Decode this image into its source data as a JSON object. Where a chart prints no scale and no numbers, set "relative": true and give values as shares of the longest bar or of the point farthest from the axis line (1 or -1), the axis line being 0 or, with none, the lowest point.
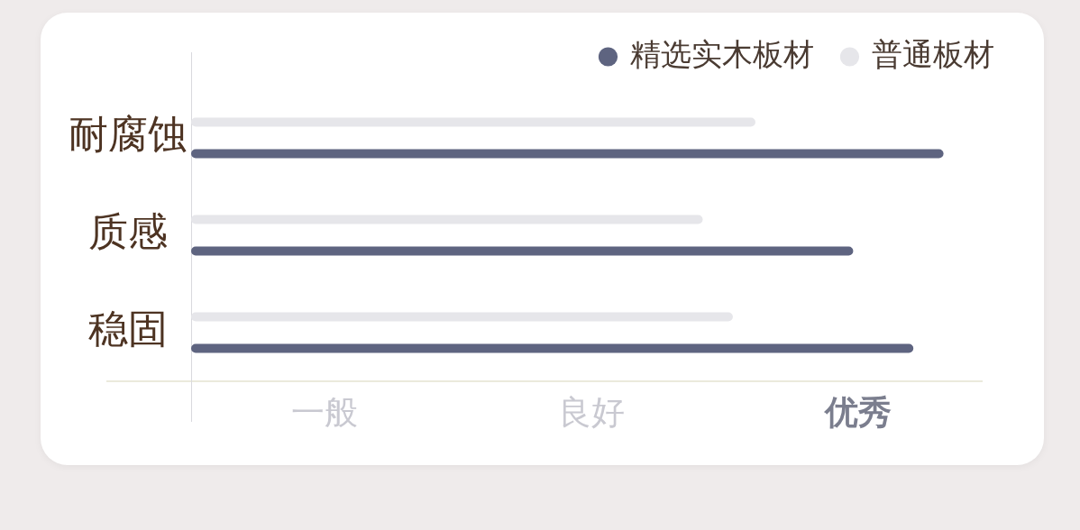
{
  "chart_data": {
    "type": "bar",
    "orientation": "horizontal",
    "relative": true,
    "categories": [
      "耐腐蚀",
      "质感",
      "稳固"
    ],
    "series": [
      {
        "name": "精选实木板材",
        "color": "#5e6480",
        "values": [
          1,
          0.88,
          0.96
        ]
      },
      {
        "name": "普通板材",
        "color": "#e6e6ea",
        "values": [
          0.75,
          0.68,
          0.72
        ]
      }
    ],
    "annotations": [
      "一般",
      "良好",
      "优秀"
    ],
    "legend": "top right"
  }
}
